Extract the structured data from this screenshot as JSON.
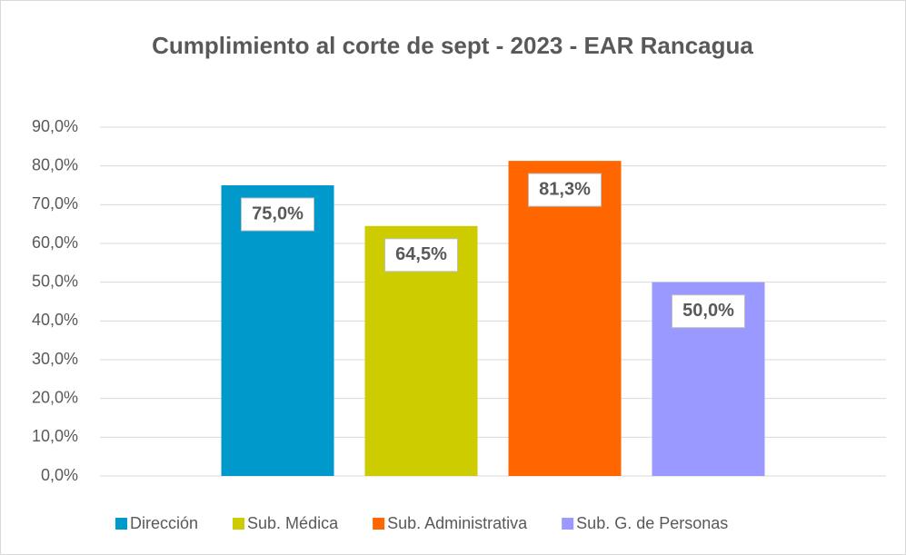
{
  "chart_data": {
    "type": "bar",
    "title": "Cumplimiento al corte de  sept - 2023 - EAR Rancagua",
    "categories": [
      null
    ],
    "series": [
      {
        "name": "Dirección",
        "color": "#0099cc",
        "values": [
          75.0
        ],
        "value_labels": [
          "75,0%"
        ]
      },
      {
        "name": "Sub. Médica",
        "color": "#cccc00",
        "values": [
          64.5
        ],
        "value_labels": [
          "64,5%"
        ]
      },
      {
        "name": "Sub. Administrativa",
        "color": "#ff6600",
        "values": [
          81.3
        ],
        "value_labels": [
          "81,3%"
        ]
      },
      {
        "name": "Sub. G. de Personas",
        "color": "#9999ff",
        "values": [
          50.0
        ],
        "value_labels": [
          "50,0%"
        ]
      }
    ],
    "ylim": [
      0,
      90
    ],
    "yticks": [
      {
        "value": 0,
        "label": "0,0%"
      },
      {
        "value": 10,
        "label": "10,0%"
      },
      {
        "value": 20,
        "label": "20,0%"
      },
      {
        "value": 30,
        "label": "30,0%"
      },
      {
        "value": 40,
        "label": "40,0%"
      },
      {
        "value": 50,
        "label": "50,0%"
      },
      {
        "value": 60,
        "label": "60,0%"
      },
      {
        "value": 70,
        "label": "70,0%"
      },
      {
        "value": 80,
        "label": "80,0%"
      },
      {
        "value": 90,
        "label": "90,0%"
      }
    ],
    "grid": true,
    "legend": "bottom"
  }
}
